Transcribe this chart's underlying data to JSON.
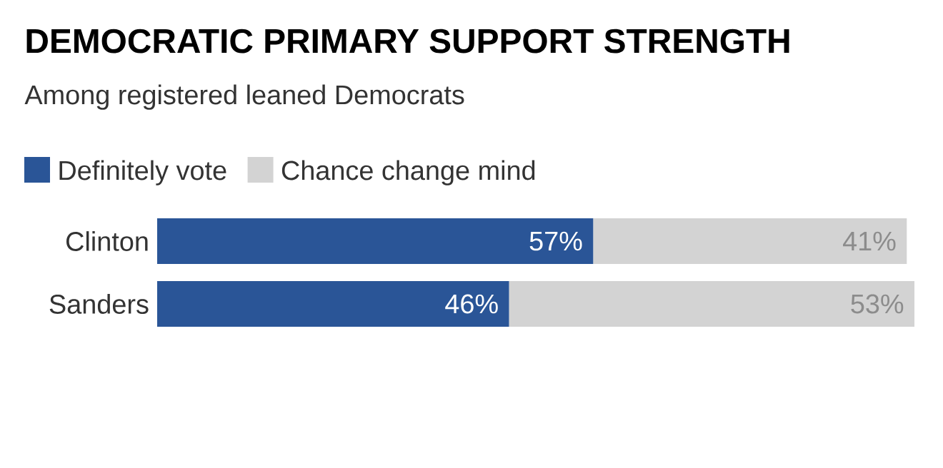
{
  "chart_data": {
    "type": "bar",
    "orientation": "horizontal",
    "stacked": true,
    "title": "DEMOCRATIC PRIMARY SUPPORT STRENGTH",
    "subtitle": "Among registered leaned Democrats",
    "categories": [
      "Clinton",
      "Sanders"
    ],
    "series": [
      {
        "name": "Definitely vote",
        "color": "#2a5597",
        "values": [
          57,
          46
        ],
        "value_labels": [
          "57%",
          "46%"
        ]
      },
      {
        "name": "Chance change mind",
        "color": "#d3d3d3",
        "values": [
          41,
          53
        ],
        "value_labels": [
          "41%",
          "53%"
        ]
      }
    ],
    "legend": "top left"
  }
}
